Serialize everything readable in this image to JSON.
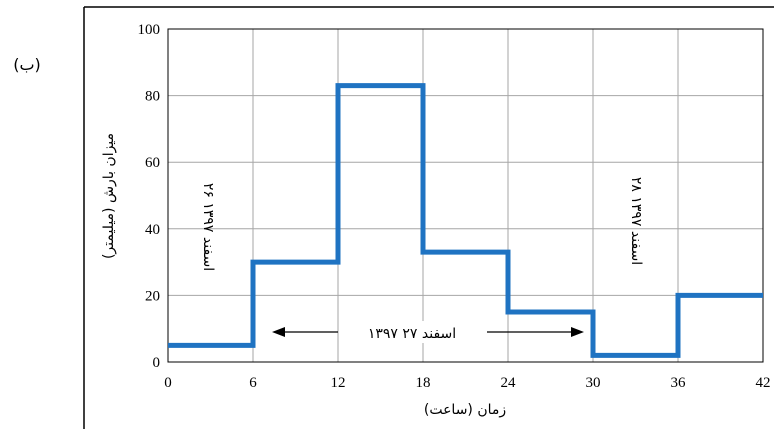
{
  "panel_label": "(ب)",
  "colors": {
    "series": "#1f73c2",
    "grid": "#a6a6a6",
    "frame": "#000000"
  },
  "chart_data": {
    "type": "line",
    "step": true,
    "xlabel": "زمان (ساعت)",
    "ylabel": "میزان بارش (میلیمتر)",
    "xlim": [
      0,
      42
    ],
    "ylim": [
      0,
      100
    ],
    "xticks": [
      0,
      6,
      12,
      18,
      24,
      30,
      36,
      42
    ],
    "yticks": [
      0,
      20,
      40,
      60,
      80,
      100
    ],
    "grid": true,
    "series": [
      {
        "segments": [
          {
            "x0": 0,
            "x1": 6,
            "y": 5
          },
          {
            "x0": 6,
            "x1": 12,
            "y": 30
          },
          {
            "x0": 12,
            "x1": 18,
            "y": 83
          },
          {
            "x0": 18,
            "x1": 24,
            "y": 33
          },
          {
            "x0": 24,
            "x1": 30,
            "y": 15
          },
          {
            "x0": 30,
            "x1": 36,
            "y": 2
          },
          {
            "x0": 36,
            "x1": 42,
            "y": 20
          }
        ]
      }
    ],
    "annotations": {
      "left_date": "۲۶ اسفند ۱۳۹۷",
      "middle_date": "اسفند ۲۷ ۱۳۹۷",
      "right_date": "۲۸ اسفند ۱۳۹۷"
    }
  }
}
